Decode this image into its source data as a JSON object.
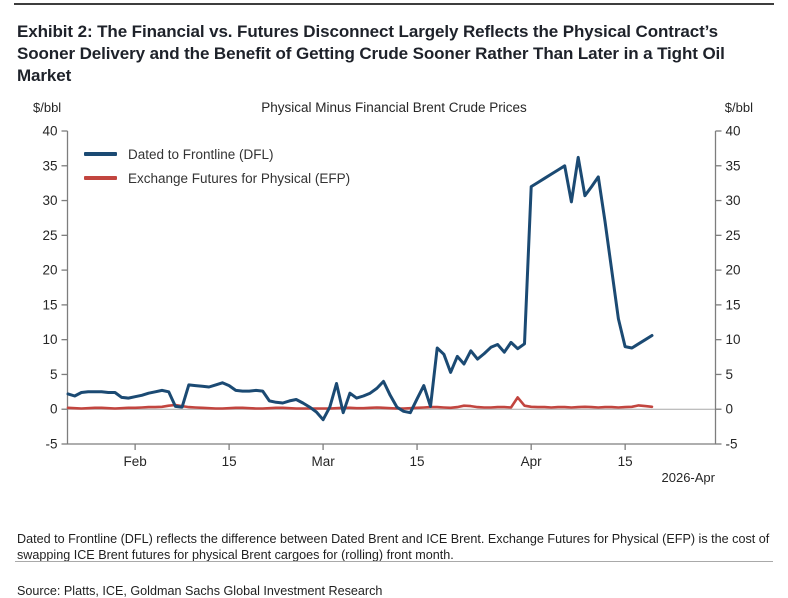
{
  "page": {
    "exhibit_title": "Exhibit 2: The Financial vs. Futures Disconnect Largely Reflects the Physical Contract’s Sooner Delivery and the Benefit of Getting Crude Sooner Rather Than Later in a Tight Oil Market",
    "footnote": "Dated to Frontline (DFL) reflects the difference between Dated Brent and ICE Brent. Exchange Futures for Physical (EFP) is the cost of swapping ICE Brent futures for physical Brent cargoes for (rolling) front month.",
    "source": "Source: Platts, ICE, Goldman Sachs Global Investment Research"
  },
  "chart_data": {
    "type": "line",
    "title": "Physical Minus Financial Brent Crude Prices",
    "y_axis_label_left": "$/bbl",
    "y_axis_label_right": "$/bbl",
    "ylim": [
      -5,
      40
    ],
    "ytick_step": 5,
    "grid": "zero-line-only",
    "legend_position": "top-left-inside",
    "x_note": "2026-Apr",
    "x_unit": "daily observations, late Jan 2026 through mid Apr 2026",
    "x_ticks": [
      {
        "label": "Feb",
        "index": 10
      },
      {
        "label": "15",
        "index": 24
      },
      {
        "label": "Mar",
        "index": 38
      },
      {
        "label": "15",
        "index": 52
      },
      {
        "label": "Apr",
        "index": 69
      },
      {
        "label": "15",
        "index": 83
      }
    ],
    "axis_color": "#7d7d7d",
    "zero_line_color": "#a8a8a8",
    "series": [
      {
        "name": "Dated to Frontline (DFL)",
        "color": "#1B4A73",
        "values": [
          2.2,
          1.9,
          2.4,
          2.5,
          2.5,
          2.5,
          2.4,
          2.4,
          1.7,
          1.6,
          1.8,
          2.0,
          2.3,
          2.5,
          2.7,
          2.5,
          0.4,
          0.3,
          3.5,
          3.4,
          3.3,
          3.2,
          3.5,
          3.8,
          3.4,
          2.7,
          2.6,
          2.6,
          2.7,
          2.6,
          1.2,
          1.0,
          0.9,
          1.2,
          1.4,
          0.9,
          0.3,
          -0.4,
          -1.5,
          0.3,
          3.7,
          -0.5,
          2.3,
          1.6,
          1.9,
          2.3,
          3.0,
          4.0,
          2.0,
          0.3,
          -0.3,
          -0.5,
          1.5,
          3.4,
          0.4,
          8.8,
          7.9,
          5.3,
          7.6,
          6.5,
          8.4,
          7.2,
          8.0,
          8.9,
          9.3,
          8.2,
          9.6,
          8.7,
          9.4,
          32.0,
          32.6,
          33.2,
          33.8,
          34.4,
          35.0,
          29.8,
          36.2,
          30.7,
          32.0,
          33.4,
          27.0,
          20.0,
          13.0,
          9.0,
          8.8,
          9.4,
          10.0,
          10.6
        ]
      },
      {
        "name": "Exchange Futures for Physical (EFP)",
        "color": "#C2453F",
        "values": [
          0.2,
          0.15,
          0.1,
          0.15,
          0.2,
          0.2,
          0.15,
          0.1,
          0.15,
          0.2,
          0.2,
          0.25,
          0.3,
          0.3,
          0.35,
          0.5,
          0.6,
          0.45,
          0.3,
          0.25,
          0.2,
          0.15,
          0.1,
          0.1,
          0.15,
          0.2,
          0.2,
          0.15,
          0.1,
          0.1,
          0.15,
          0.2,
          0.2,
          0.15,
          0.1,
          0.1,
          0.1,
          0.1,
          0.1,
          0.1,
          0.15,
          0.2,
          0.2,
          0.15,
          0.15,
          0.2,
          0.25,
          0.2,
          0.15,
          0.1,
          0.1,
          0.15,
          0.2,
          0.25,
          0.3,
          0.3,
          0.25,
          0.2,
          0.3,
          0.5,
          0.45,
          0.3,
          0.25,
          0.25,
          0.3,
          0.3,
          0.25,
          1.7,
          0.5,
          0.35,
          0.3,
          0.3,
          0.25,
          0.3,
          0.3,
          0.25,
          0.3,
          0.35,
          0.3,
          0.25,
          0.3,
          0.3,
          0.25,
          0.3,
          0.35,
          0.55,
          0.45,
          0.35
        ]
      }
    ]
  }
}
